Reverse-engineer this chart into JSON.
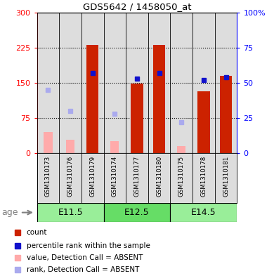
{
  "title": "GDS5642 / 1458050_at",
  "samples": [
    "GSM1310173",
    "GSM1310176",
    "GSM1310179",
    "GSM1310174",
    "GSM1310177",
    "GSM1310180",
    "GSM1310175",
    "GSM1310178",
    "GSM1310181"
  ],
  "age_groups": [
    {
      "label": "E11.5",
      "start": 0,
      "end": 3
    },
    {
      "label": "E12.5",
      "start": 3,
      "end": 6
    },
    {
      "label": "E14.5",
      "start": 6,
      "end": 9
    }
  ],
  "count_values": [
    null,
    null,
    230,
    null,
    148,
    230,
    null,
    132,
    165
  ],
  "count_absent": [
    45,
    28,
    null,
    25,
    null,
    null,
    15,
    null,
    null
  ],
  "rank_values_pct": [
    null,
    null,
    57,
    null,
    53,
    57,
    null,
    52,
    54
  ],
  "rank_absent_pct": [
    45,
    30,
    null,
    28,
    null,
    null,
    22,
    null,
    null
  ],
  "ylim_left": [
    0,
    300
  ],
  "ylim_right": [
    0,
    100
  ],
  "yticks_left": [
    0,
    75,
    150,
    225,
    300
  ],
  "ytick_labels_left": [
    "0",
    "75",
    "150",
    "225",
    "300"
  ],
  "yticks_right": [
    0,
    25,
    50,
    75,
    100
  ],
  "ytick_labels_right": [
    "0",
    "25",
    "50",
    "75",
    "100%"
  ],
  "hline_values": [
    75,
    150,
    225
  ],
  "bar_color": "#cc2200",
  "absent_bar_color": "#ffaaaa",
  "rank_color": "#1111cc",
  "rank_absent_color": "#aaaaee",
  "age_bg_color": "#99ee99",
  "age_bg_color2": "#66dd66",
  "label_bg_color": "#dddddd",
  "plot_bg_color": "#ffffff",
  "legend_items": [
    {
      "label": "count",
      "color": "#cc2200"
    },
    {
      "label": "percentile rank within the sample",
      "color": "#1111cc"
    },
    {
      "label": "value, Detection Call = ABSENT",
      "color": "#ffaaaa"
    },
    {
      "label": "rank, Detection Call = ABSENT",
      "color": "#aaaaee"
    }
  ]
}
